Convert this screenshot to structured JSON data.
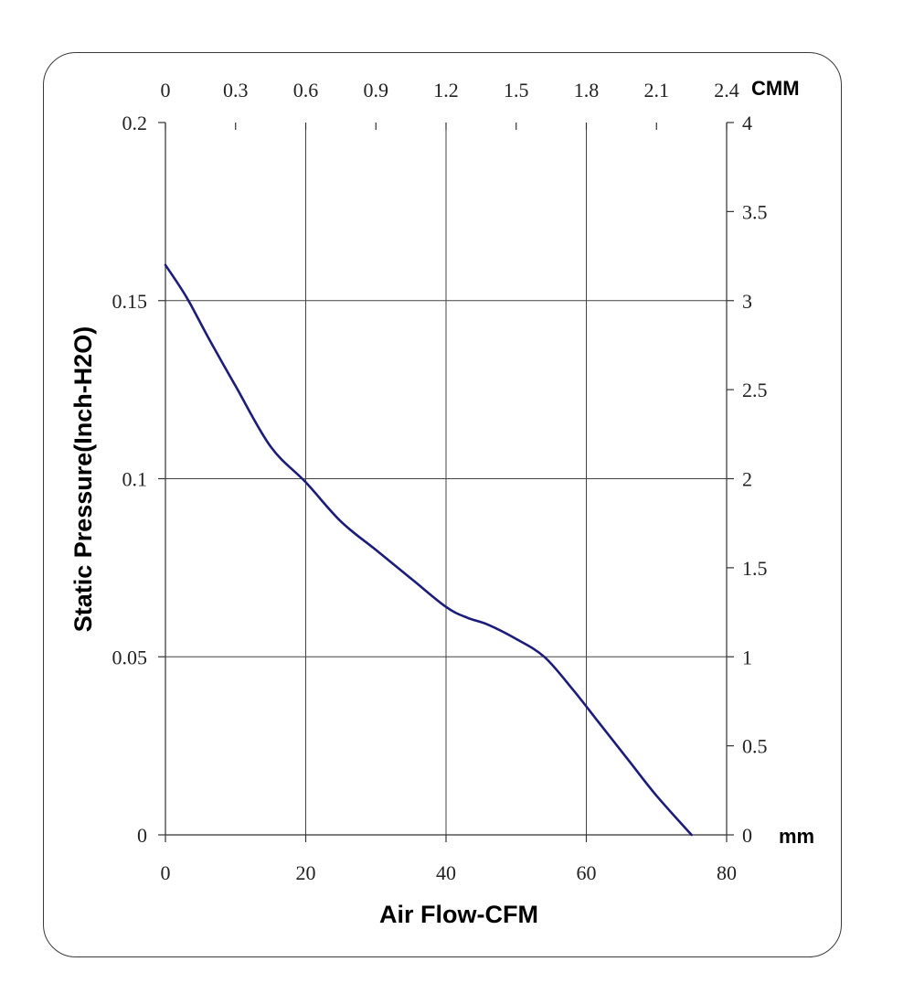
{
  "chart_data": {
    "type": "line",
    "xlabel": "Air Flow-CFM",
    "ylabel": "Static Pressure(Inch-H2O)",
    "x_top_unit": "CMM",
    "y_right_unit": "mm",
    "xlim": [
      0,
      80
    ],
    "ylim": [
      0,
      0.2
    ],
    "x2lim": [
      0,
      2.4
    ],
    "y2lim": [
      0,
      4
    ],
    "x_ticks": [
      "0",
      "20",
      "40",
      "60",
      "80"
    ],
    "y_ticks": [
      "0",
      "0.05",
      "0.1",
      "0.15",
      "0.2"
    ],
    "x2_ticks": [
      "0",
      "0.3",
      "0.6",
      "0.9",
      "1.2",
      "1.5",
      "1.8",
      "2.1",
      "2.4"
    ],
    "y2_ticks": [
      "0",
      "0.5",
      "1",
      "1.5",
      "2",
      "2.5",
      "3",
      "3.5",
      "4"
    ],
    "grid": true,
    "series": [
      {
        "color": "#1c1c7a",
        "x": [
          0,
          3,
          6,
          10,
          15,
          20,
          25,
          30,
          35,
          40,
          43,
          46,
          50,
          54,
          58,
          62,
          66,
          70,
          75
        ],
        "y": [
          0.16,
          0.151,
          0.14,
          0.126,
          0.109,
          0.099,
          0.088,
          0.08,
          0.072,
          0.064,
          0.061,
          0.059,
          0.055,
          0.05,
          0.041,
          0.031,
          0.021,
          0.011,
          0.0
        ]
      }
    ]
  }
}
